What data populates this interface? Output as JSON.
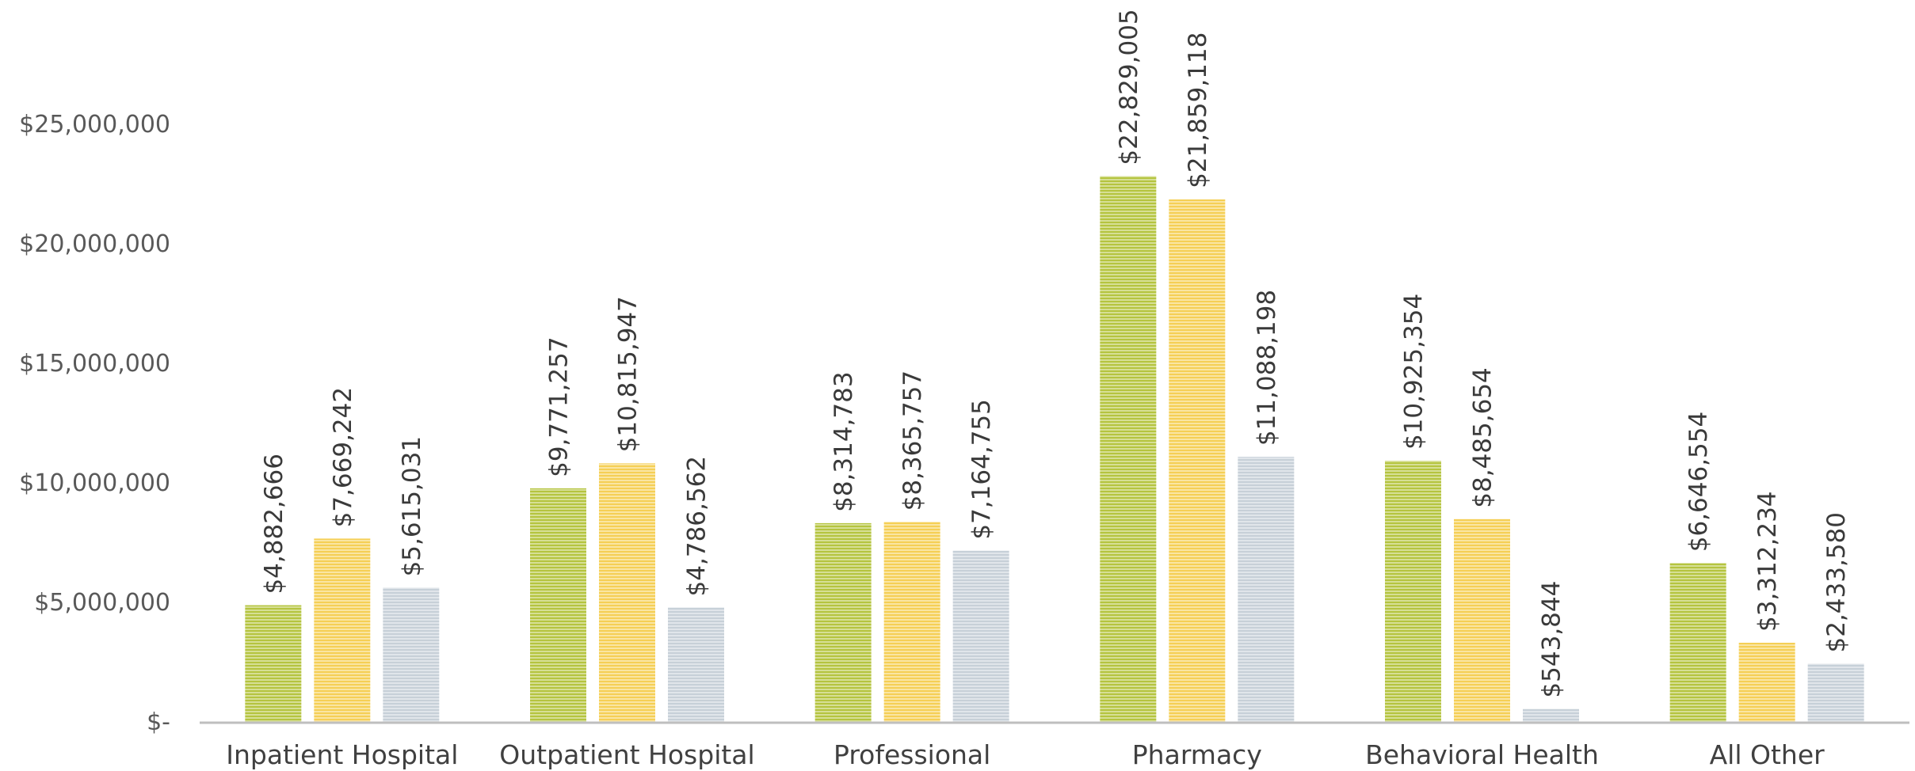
{
  "chart_data": {
    "type": "bar",
    "categories": [
      "Inpatient Hospital",
      "Outpatient Hospital",
      "Professional",
      "Pharmacy",
      "Behavioral Health",
      "All Other"
    ],
    "series": [
      {
        "color": "#b5c43f",
        "values": [
          4882666,
          9771257,
          8314783,
          22829005,
          10925354,
          6646554
        ]
      },
      {
        "color": "#f5cf55",
        "values": [
          7669242,
          10815947,
          8365757,
          21859118,
          8485654,
          3312234
        ]
      },
      {
        "color": "#c7d0d8",
        "values": [
          5615031,
          4786562,
          7164755,
          11088198,
          543844,
          2433580
        ]
      }
    ],
    "data_labels": [
      [
        "$4,882,666",
        "$9,771,257",
        "$8,314,783",
        "$22,829,005",
        "$10,925,354",
        "$6,646,554"
      ],
      [
        "$7,669,242",
        "$10,815,947",
        "$8,365,757",
        "$21,859,118",
        "$8,485,654",
        "$3,312,234"
      ],
      [
        "$5,615,031",
        "$4,786,562",
        "$7,164,755",
        "$11,088,198",
        "$543,844",
        "$2,433,580"
      ]
    ],
    "ylim": [
      0,
      25000000
    ],
    "yticks": [
      0,
      5000000,
      10000000,
      15000000,
      20000000,
      25000000
    ],
    "ytick_labels": [
      "$-",
      "$5,000,000",
      "$10,000,000",
      "$15,000,000",
      "$20,000,000",
      "$25,000,000"
    ],
    "title": "",
    "xlabel": "",
    "ylabel": "",
    "grid": false,
    "legend": "none",
    "bar_pattern": "horizontal-stripes"
  }
}
